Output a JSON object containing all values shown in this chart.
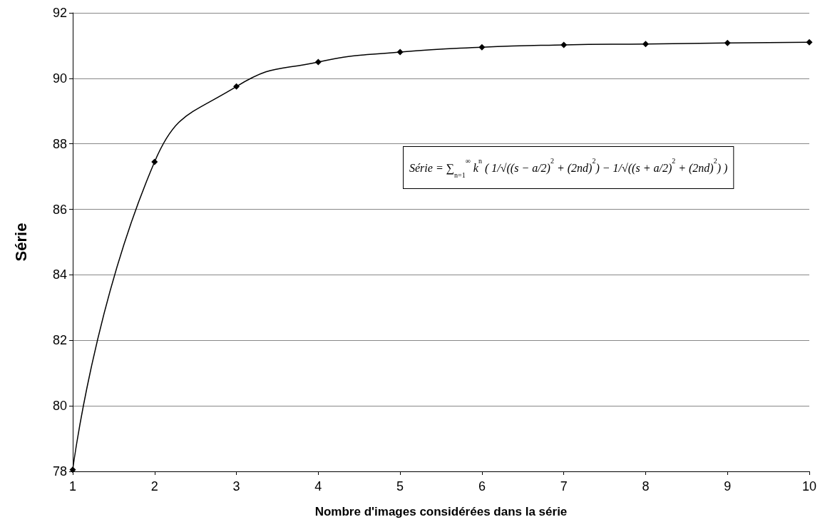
{
  "chart_data": {
    "type": "line",
    "xlabel": "Nombre d'images considérées dans la série",
    "ylabel": "Série",
    "x": [
      1,
      2,
      3,
      4,
      5,
      6,
      7,
      8,
      9,
      10
    ],
    "series": [
      {
        "color": "#000000",
        "values": [
          78.05,
          87.45,
          89.75,
          90.5,
          90.8,
          90.95,
          91.02,
          91.05,
          91.08,
          91.1
        ]
      }
    ],
    "xlim": [
      1,
      10
    ],
    "xticks": [
      1,
      2,
      3,
      4,
      5,
      6,
      7,
      8,
      9,
      10
    ],
    "ylim": [
      78,
      92
    ],
    "yticks": [
      78,
      80,
      82,
      84,
      86,
      88,
      90,
      92
    ],
    "grid": "y",
    "marker": "diamond",
    "line_style": "solid",
    "annotations": [
      "Série = ∑$_{n=1}$$^{∞}$ k$^{n}$ ( 1/√((s − a/2)$^{2}$ + (2nd)$^{2}$) − 1/√((s + a/2)$^{2}$ + (2nd)$^{2}$) )"
    ]
  }
}
